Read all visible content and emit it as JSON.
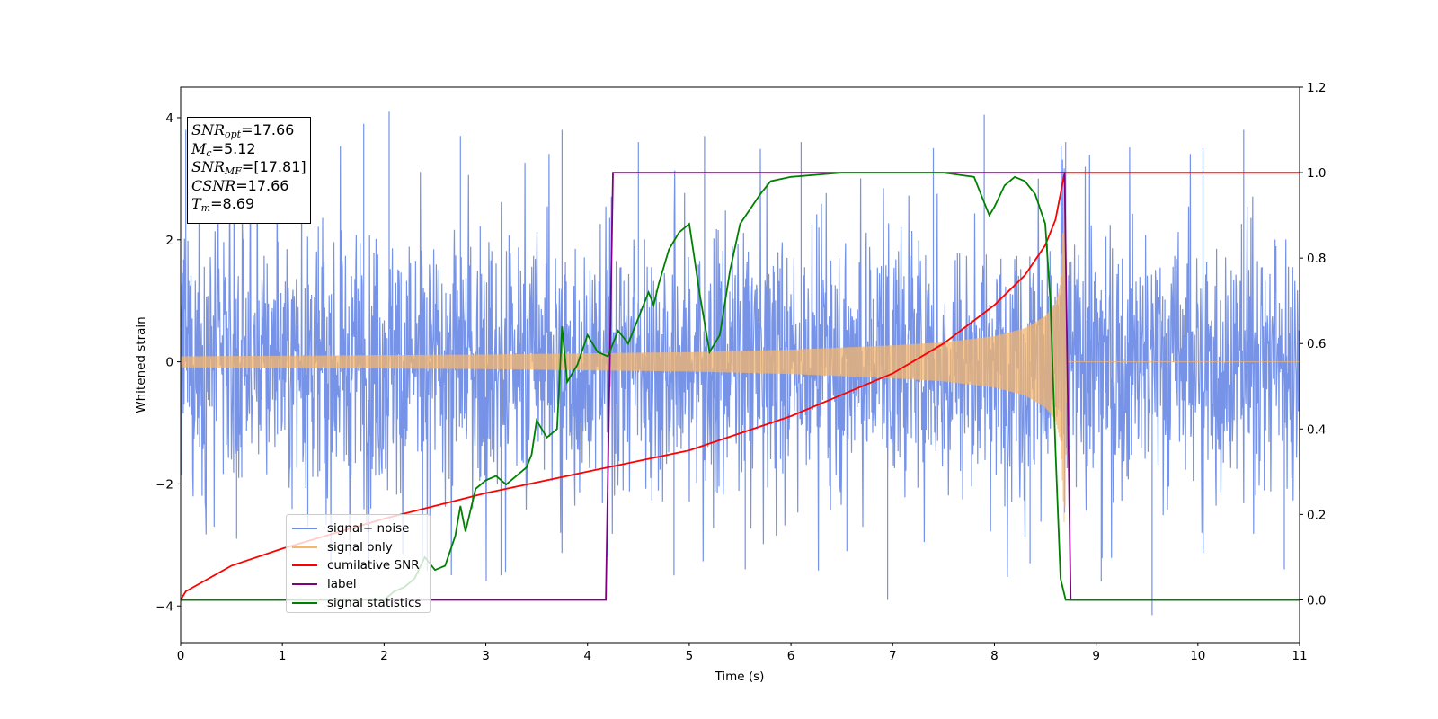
{
  "chart_data": {
    "type": "line",
    "title": "",
    "xlabel": "Time (s)",
    "ylabel": "Whitened strain",
    "y2label": "",
    "xlim": [
      0,
      11
    ],
    "ylim": [
      -4.6,
      4.5
    ],
    "y2lim": [
      -0.1,
      1.2
    ],
    "x_ticks": [
      "0",
      "1",
      "2",
      "3",
      "4",
      "5",
      "6",
      "7",
      "8",
      "9",
      "10",
      "11"
    ],
    "y_ticks": [
      "−4",
      "−2",
      "0",
      "2",
      "4"
    ],
    "y2_ticks": [
      "0.0",
      "0.2",
      "0.4",
      "0.6",
      "0.8",
      "1.0",
      "1.2"
    ],
    "legend_placement": "lower-left",
    "grid": false,
    "annotation": {
      "snr_opt": "=17.66",
      "mc": "=5.12",
      "snr_mf": "=[17.81]",
      "csnr": "=17.66",
      "tm": "=8.69"
    },
    "series": [
      {
        "name": "signal+ noise",
        "color": "#6f8de6",
        "axis": "left",
        "description_values": {
          "noise_envelope_x": [
            0,
            2,
            4,
            6,
            8,
            8.6,
            8.69,
            8.75,
            11
          ],
          "noise_envelope_y": [
            1.6,
            1.6,
            1.6,
            1.6,
            1.6,
            1.8,
            2.8,
            1.6,
            1.6
          ],
          "spike_x": [
            0.05,
            0.55,
            0.95,
            1.25,
            1.8,
            2.05,
            2.45,
            2.75,
            3.15,
            3.75,
            4.2,
            4.5,
            4.85,
            5.15,
            5.55,
            6.1,
            6.55,
            6.95,
            7.4,
            7.9,
            8.35,
            8.7,
            9.05,
            9.55,
            10.05,
            10.45,
            10.85
          ],
          "spike_y": [
            3.8,
            -2.9,
            3.9,
            -2.7,
            3.9,
            4.1,
            -3.3,
            3.7,
            -3.5,
            3.8,
            -3.2,
            3.6,
            -3.5,
            3.7,
            -3.4,
            3.6,
            -3.1,
            -3.9,
            3.5,
            4.05,
            -3.3,
            3.6,
            -3.6,
            -4.15,
            3.5,
            3.8,
            -3.4
          ]
        }
      },
      {
        "name": "signal only",
        "color": "#f5b66b",
        "axis": "left",
        "x": [
          0,
          1,
          2,
          3,
          4,
          5,
          6,
          7,
          7.5,
          8,
          8.3,
          8.5,
          8.6,
          8.65,
          8.69,
          8.72,
          11
        ],
        "amplitude": [
          0.09,
          0.1,
          0.11,
          0.12,
          0.14,
          0.16,
          0.2,
          0.27,
          0.32,
          0.42,
          0.55,
          0.75,
          0.95,
          1.3,
          2.8,
          0.0,
          0.0
        ]
      },
      {
        "name": "cumilative SNR",
        "color": "#ff0000",
        "axis": "right",
        "x": [
          0,
          0.05,
          0.5,
          1,
          2,
          3,
          4,
          5,
          6,
          7,
          7.5,
          8,
          8.3,
          8.5,
          8.6,
          8.69,
          11
        ],
        "values": [
          0.0,
          0.02,
          0.08,
          0.12,
          0.19,
          0.25,
          0.3,
          0.35,
          0.43,
          0.53,
          0.6,
          0.69,
          0.76,
          0.83,
          0.89,
          1.0,
          1.0
        ]
      },
      {
        "name": "label",
        "color": "#800080",
        "axis": "right",
        "x": [
          0,
          4.18,
          4.25,
          8.69,
          8.75,
          11
        ],
        "values": [
          0.0,
          0.0,
          1.0,
          1.0,
          0.0,
          0.0
        ]
      },
      {
        "name": "signal statistics",
        "color": "#008000",
        "axis": "right",
        "x": [
          0,
          2.0,
          2.1,
          2.2,
          2.3,
          2.4,
          2.5,
          2.6,
          2.7,
          2.75,
          2.8,
          2.9,
          3.0,
          3.1,
          3.2,
          3.3,
          3.4,
          3.45,
          3.5,
          3.6,
          3.7,
          3.75,
          3.8,
          3.9,
          4.0,
          4.1,
          4.2,
          4.25,
          4.3,
          4.4,
          4.5,
          4.6,
          4.65,
          4.7,
          4.8,
          4.9,
          5.0,
          5.05,
          5.1,
          5.2,
          5.3,
          5.4,
          5.5,
          5.7,
          5.8,
          6.0,
          6.5,
          7.0,
          7.5,
          7.8,
          7.9,
          7.95,
          8.0,
          8.1,
          8.2,
          8.3,
          8.4,
          8.5,
          8.55,
          8.6,
          8.65,
          8.7,
          8.75,
          8.8,
          9.0,
          11
        ],
        "values": [
          0.0,
          0.0,
          0.02,
          0.03,
          0.05,
          0.1,
          0.07,
          0.08,
          0.15,
          0.22,
          0.16,
          0.26,
          0.28,
          0.29,
          0.27,
          0.29,
          0.31,
          0.34,
          0.42,
          0.38,
          0.4,
          0.64,
          0.51,
          0.55,
          0.62,
          0.58,
          0.57,
          0.6,
          0.63,
          0.6,
          0.66,
          0.72,
          0.69,
          0.74,
          0.82,
          0.86,
          0.88,
          0.8,
          0.72,
          0.58,
          0.62,
          0.77,
          0.88,
          0.95,
          0.98,
          0.99,
          1.0,
          1.0,
          1.0,
          0.99,
          0.93,
          0.9,
          0.92,
          0.97,
          0.99,
          0.98,
          0.95,
          0.88,
          0.7,
          0.35,
          0.05,
          0.0,
          0.0,
          0.0,
          0.0,
          0.0
        ]
      }
    ]
  }
}
